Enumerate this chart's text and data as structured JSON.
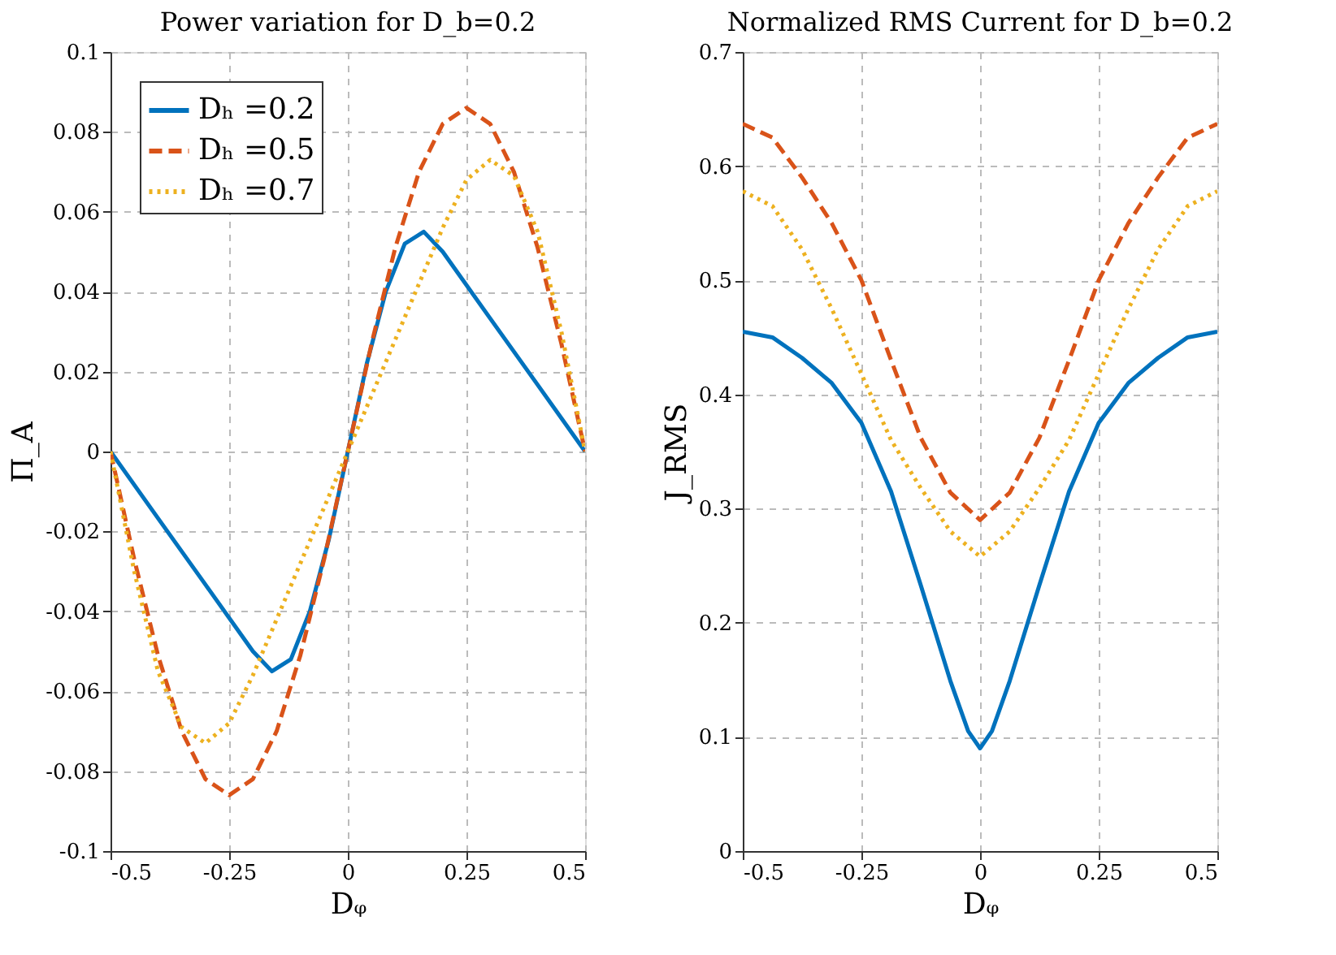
{
  "chart_data": [
    {
      "type": "line",
      "title": "Power variation for D_b=0.2",
      "xlabel": "Dᵩ",
      "ylabel": "Π_A",
      "xlim": [
        -0.5,
        0.5
      ],
      "xticks": [
        -0.5,
        -0.25,
        0,
        0.25,
        0.5
      ],
      "ylim": [
        -0.1,
        0.1
      ],
      "yticks": [
        -0.1,
        -0.08,
        -0.06,
        -0.04,
        -0.02,
        0,
        0.02,
        0.04,
        0.06,
        0.08,
        0.1
      ],
      "grid": true,
      "legend": "top left",
      "series": [
        {
          "name": "Dₕ =0.2",
          "color": "#0072bd",
          "line_style": "solid",
          "x": [
            -0.5,
            -0.4,
            -0.3,
            -0.2,
            -0.16,
            -0.12,
            -0.08,
            -0.04,
            0,
            0.04,
            0.08,
            0.12,
            0.16,
            0.2,
            0.3,
            0.4,
            0.5
          ],
          "values": [
            0,
            -0.0167,
            -0.0333,
            -0.05,
            -0.055,
            -0.052,
            -0.04,
            -0.022,
            0,
            0.022,
            0.04,
            0.052,
            0.055,
            0.05,
            0.0333,
            0.0167,
            0
          ]
        },
        {
          "name": "Dₕ =0.5",
          "color": "#d95319",
          "line_style": "dashed",
          "x": [
            -0.5,
            -0.45,
            -0.4,
            -0.35,
            -0.3,
            -0.25,
            -0.2,
            -0.15,
            -0.1,
            -0.05,
            0,
            0.05,
            0.1,
            0.15,
            0.2,
            0.25,
            0.3,
            0.35,
            0.4,
            0.45,
            0.5
          ],
          "values": [
            0,
            -0.027,
            -0.051,
            -0.07,
            -0.082,
            -0.086,
            -0.082,
            -0.07,
            -0.051,
            -0.027,
            0,
            0.027,
            0.051,
            0.07,
            0.082,
            0.086,
            0.082,
            0.07,
            0.051,
            0.027,
            0
          ]
        },
        {
          "name": "Dₕ =0.7",
          "color": "#edb120",
          "line_style": "dotted",
          "x": [
            -0.5,
            -0.45,
            -0.4,
            -0.35,
            -0.3,
            -0.25,
            -0.2,
            -0.15,
            -0.1,
            -0.05,
            0,
            0.05,
            0.1,
            0.15,
            0.2,
            0.25,
            0.3,
            0.35,
            0.4,
            0.45,
            0.5
          ],
          "values": [
            0,
            -0.03,
            -0.055,
            -0.069,
            -0.073,
            -0.068,
            -0.056,
            -0.042,
            -0.028,
            -0.014,
            0,
            0.014,
            0.028,
            0.042,
            0.056,
            0.068,
            0.073,
            0.069,
            0.055,
            0.03,
            0
          ]
        }
      ]
    },
    {
      "type": "line",
      "title": "Normalized RMS Current for D_b=0.2",
      "xlabel": "Dᵩ",
      "ylabel": "J_RMS",
      "xlim": [
        -0.5,
        0.5
      ],
      "xticks": [
        -0.5,
        -0.25,
        0,
        0.25,
        0.5
      ],
      "ylim": [
        0,
        0.7
      ],
      "yticks": [
        0,
        0.1,
        0.2,
        0.3,
        0.4,
        0.5,
        0.6,
        0.7
      ],
      "grid": true,
      "series": [
        {
          "color": "#0072bd",
          "line_style": "solid",
          "x": [
            -0.5,
            -0.4375,
            -0.375,
            -0.3125,
            -0.25,
            -0.1875,
            -0.125,
            -0.0625,
            -0.025,
            0,
            0.025,
            0.0625,
            0.125,
            0.1875,
            0.25,
            0.3125,
            0.375,
            0.4375,
            0.5
          ],
          "values": [
            0.455,
            0.45,
            0.432,
            0.41,
            0.375,
            0.315,
            0.233,
            0.149,
            0.105,
            0.09,
            0.105,
            0.149,
            0.233,
            0.315,
            0.375,
            0.41,
            0.432,
            0.45,
            0.455
          ]
        },
        {
          "color": "#d95319",
          "line_style": "dashed",
          "x": [
            -0.5,
            -0.4375,
            -0.375,
            -0.3125,
            -0.25,
            -0.1875,
            -0.125,
            -0.0625,
            0,
            0.0625,
            0.125,
            0.1875,
            0.25,
            0.3125,
            0.375,
            0.4375,
            0.5
          ],
          "values": [
            0.637,
            0.625,
            0.59,
            0.55,
            0.5,
            0.43,
            0.362,
            0.314,
            0.29,
            0.314,
            0.362,
            0.43,
            0.5,
            0.55,
            0.59,
            0.625,
            0.637
          ]
        },
        {
          "color": "#edb120",
          "line_style": "dotted",
          "x": [
            -0.5,
            -0.4375,
            -0.375,
            -0.3125,
            -0.25,
            -0.1875,
            -0.125,
            -0.0625,
            0,
            0.0625,
            0.125,
            0.1875,
            0.25,
            0.3125,
            0.375,
            0.4375,
            0.5
          ],
          "values": [
            0.578,
            0.565,
            0.527,
            0.475,
            0.418,
            0.36,
            0.318,
            0.28,
            0.258,
            0.28,
            0.318,
            0.36,
            0.418,
            0.475,
            0.527,
            0.565,
            0.578
          ]
        }
      ]
    }
  ]
}
